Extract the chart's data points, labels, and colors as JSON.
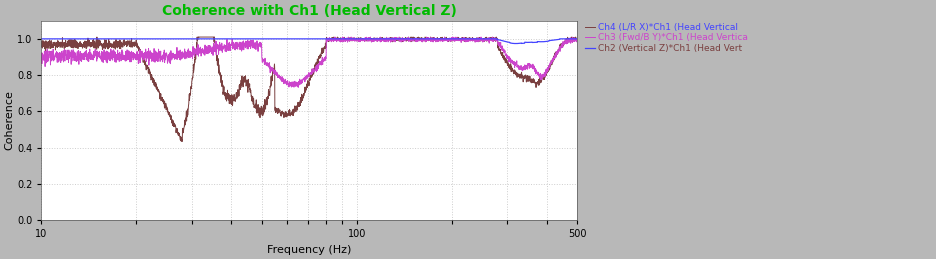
{
  "title": "Coherence with Ch1 (Head Vertical Z)",
  "xlabel": "Frequency (Hz)",
  "ylabel": "Coherence",
  "xlim": [
    10,
    500
  ],
  "ylim": [
    0,
    1.1
  ],
  "yticks": [
    0,
    0.2,
    0.4,
    0.6,
    0.8,
    1.0
  ],
  "background_color": "#b8b8b8",
  "plot_background": "#ffffff",
  "title_color": "#00bb00",
  "legend_entries": [
    "Ch2 (Vertical Z)*Ch1 (Head Vert",
    "Ch3 (Fwd/B Y)*Ch1 (Head Vertica",
    "Ch4 (L/R X)*Ch1 (Head Vertical"
  ],
  "legend_colors": [
    "#4444ff",
    "#cc44cc",
    "#7a4040"
  ],
  "grid_color": "#c8c8c8",
  "title_fontsize": 10,
  "axis_fontsize": 8,
  "legend_fontsize": 6.5
}
